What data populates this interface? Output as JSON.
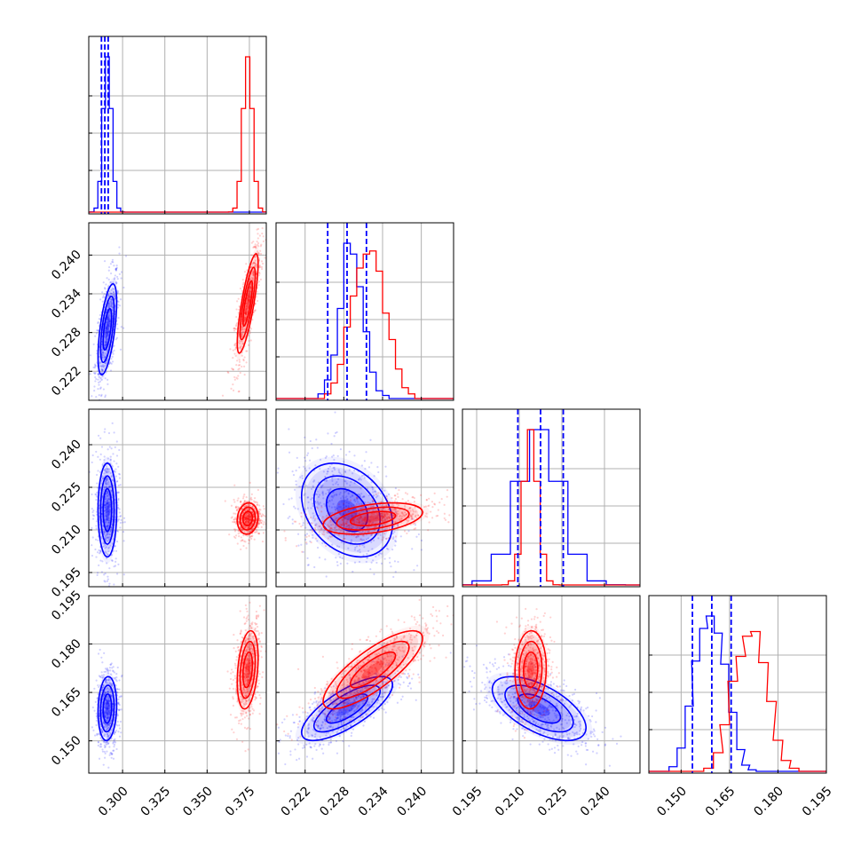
{
  "colors": {
    "blue": "#0000ff",
    "red": "#ff0000",
    "grid": "#b0b0b0",
    "axes": "#000000"
  },
  "chart_data": {
    "type": "corner",
    "grid": true,
    "parameters": [
      {
        "range": [
          0.28,
          0.385
        ],
        "ticks": [
          "0.300",
          "0.325",
          "0.350",
          "0.375"
        ],
        "tick_values": [
          0.3,
          0.325,
          0.35,
          0.375
        ]
      },
      {
        "range": [
          0.2175,
          0.245
        ],
        "ticks": [
          "0.222",
          "0.228",
          "0.234",
          "0.240"
        ],
        "tick_values": [
          0.222,
          0.228,
          0.234,
          0.24
        ]
      },
      {
        "range": [
          0.19,
          0.2525
        ],
        "ticks": [
          "0.195",
          "0.210",
          "0.225",
          "0.240"
        ],
        "tick_values": [
          0.195,
          0.21,
          0.225,
          0.24
        ]
      },
      {
        "range": [
          0.14,
          0.195
        ],
        "ticks": [
          "0.150",
          "0.165",
          "0.180",
          "0.195"
        ],
        "tick_values": [
          0.15,
          0.165,
          0.18,
          0.195
        ]
      }
    ],
    "series": [
      {
        "color": "#0000ff",
        "mean": [
          0.291,
          0.2285,
          0.217,
          0.16
        ],
        "sd": [
          0.0025,
          0.0032,
          0.0075,
          0.0045
        ],
        "corr": [
          [
            1,
            0.6,
            0.0,
            0.1
          ],
          [
            0.6,
            1,
            -0.3,
            0.75
          ],
          [
            0.0,
            -0.3,
            1,
            -0.6
          ],
          [
            0.1,
            0.75,
            -0.6,
            1
          ]
        ],
        "quantiles": [
          [
            0.2875,
            0.2895,
            0.2915
          ],
          [
            0.2255,
            0.2285,
            0.2315
          ],
          [
            0.2095,
            0.2175,
            0.2255
          ],
          [
            0.1535,
            0.1595,
            0.1655
          ]
        ],
        "hist_1": [
          [
            0.2245,
            0.03
          ],
          [
            0.2255,
            0.12
          ],
          [
            0.2265,
            0.28
          ],
          [
            0.2275,
            0.58
          ],
          [
            0.2285,
            1.0
          ],
          [
            0.2295,
            0.93
          ],
          [
            0.2305,
            0.72
          ],
          [
            0.2315,
            0.43
          ],
          [
            0.2325,
            0.17
          ],
          [
            0.2335,
            0.05
          ],
          [
            0.2345,
            0.02
          ]
        ],
        "hist_3": [
          [
            0.1475,
            0.03
          ],
          [
            0.15,
            0.15
          ],
          [
            0.1525,
            0.42
          ],
          [
            0.1545,
            0.71
          ],
          [
            0.157,
            0.92
          ],
          [
            0.159,
            1.0
          ],
          [
            0.1615,
            0.89
          ],
          [
            0.1635,
            0.69
          ],
          [
            0.166,
            0.38
          ],
          [
            0.1685,
            0.14
          ],
          [
            0.17,
            0.04
          ],
          [
            0.172,
            0.01
          ]
        ]
      },
      {
        "color": "#ff0000",
        "mean": [
          0.374,
          0.2325,
          0.214,
          0.172
        ],
        "sd": [
          0.0028,
          0.0035,
          0.0025,
          0.0055
        ],
        "corr": [
          [
            1,
            0.8,
            0.1,
            0.3
          ],
          [
            0.8,
            1,
            0.4,
            0.8
          ],
          [
            0.1,
            0.4,
            1,
            0.05
          ],
          [
            0.3,
            0.8,
            0.05,
            1
          ]
        ],
        "quantiles": [],
        "hist_1": [
          [
            0.2255,
            0.03
          ],
          [
            0.2265,
            0.1
          ],
          [
            0.2275,
            0.22
          ],
          [
            0.2285,
            0.46
          ],
          [
            0.2295,
            0.66
          ],
          [
            0.2305,
            0.84
          ],
          [
            0.2315,
            0.93
          ],
          [
            0.2325,
            0.95
          ],
          [
            0.2335,
            0.82
          ],
          [
            0.2345,
            0.55
          ],
          [
            0.2355,
            0.38
          ],
          [
            0.2365,
            0.19
          ],
          [
            0.2375,
            0.07
          ],
          [
            0.2385,
            0.03
          ]
        ],
        "hist_3": [
          [
            0.1585,
            0.02
          ],
          [
            0.1615,
            0.12
          ],
          [
            0.1635,
            0.3
          ],
          [
            0.166,
            0.58
          ],
          [
            0.1685,
            0.74
          ],
          [
            0.1705,
            0.87
          ],
          [
            0.173,
            0.9
          ],
          [
            0.1755,
            0.7
          ],
          [
            0.178,
            0.45
          ],
          [
            0.18,
            0.2
          ],
          [
            0.1825,
            0.07
          ],
          [
            0.185,
            0.02
          ]
        ]
      }
    ]
  }
}
